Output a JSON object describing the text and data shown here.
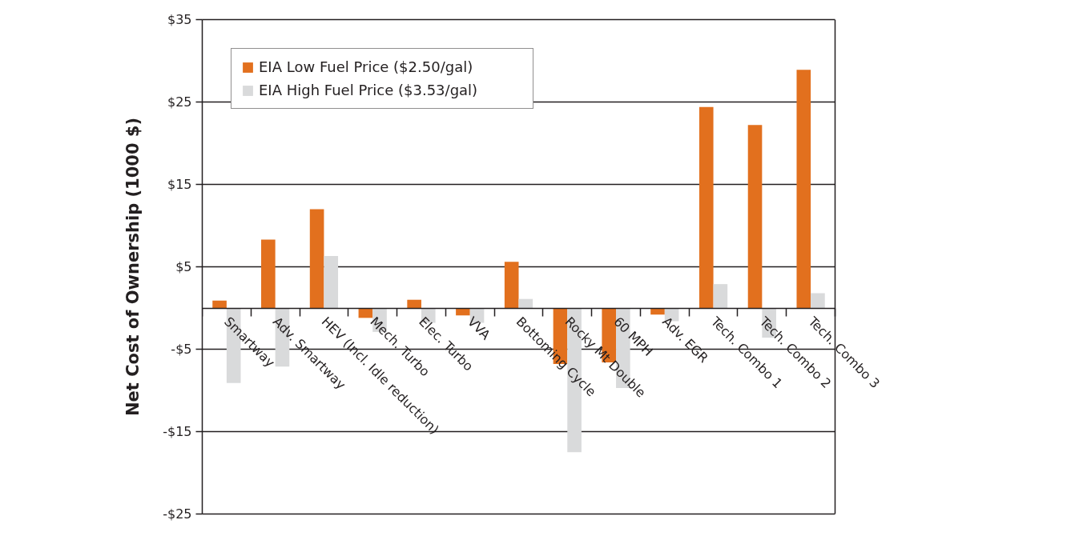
{
  "chart_data": {
    "type": "bar",
    "ylabel": "Net Cost of Ownership (1000 $)",
    "categories": [
      "Smartway",
      "Adv. Smartway",
      "HEV (Incl. Idle reduction)",
      "Mech. Turbo",
      "Elec. Turbo",
      "VVA",
      "Bottoming Cycle",
      "Rocky Mt Double",
      "60 MPH",
      "Adv. EGR",
      "Tech. Combo 1",
      "Tech. Combo 2",
      "Tech. Combo 3"
    ],
    "series": [
      {
        "name": "EIA Low Fuel Price ($2.50/gal)",
        "color": "#e2701e",
        "values": [
          0.9,
          8.3,
          12.0,
          -1.2,
          1.0,
          -0.9,
          5.6,
          -6.8,
          -6.6,
          -0.8,
          24.4,
          22.2,
          28.9
        ]
      },
      {
        "name": "EIA High Fuel Price ($3.53/gal)",
        "color": "#d9dadb",
        "values": [
          -9.1,
          -7.1,
          6.3,
          -2.9,
          -1.8,
          -1.8,
          1.1,
          -17.5,
          -9.7,
          -1.6,
          2.9,
          -3.6,
          1.8
        ]
      }
    ],
    "ylim": [
      -25,
      35
    ],
    "yticks": [
      {
        "value": -25,
        "label": "-$25"
      },
      {
        "value": -15,
        "label": "-$15"
      },
      {
        "value": -5,
        "label": "-$5"
      },
      {
        "value": 5,
        "label": "$5"
      },
      {
        "value": 15,
        "label": "$15"
      },
      {
        "value": 25,
        "label": "$25"
      },
      {
        "value": 35,
        "label": "$35"
      }
    ],
    "grid": "y",
    "legend": "top left"
  }
}
